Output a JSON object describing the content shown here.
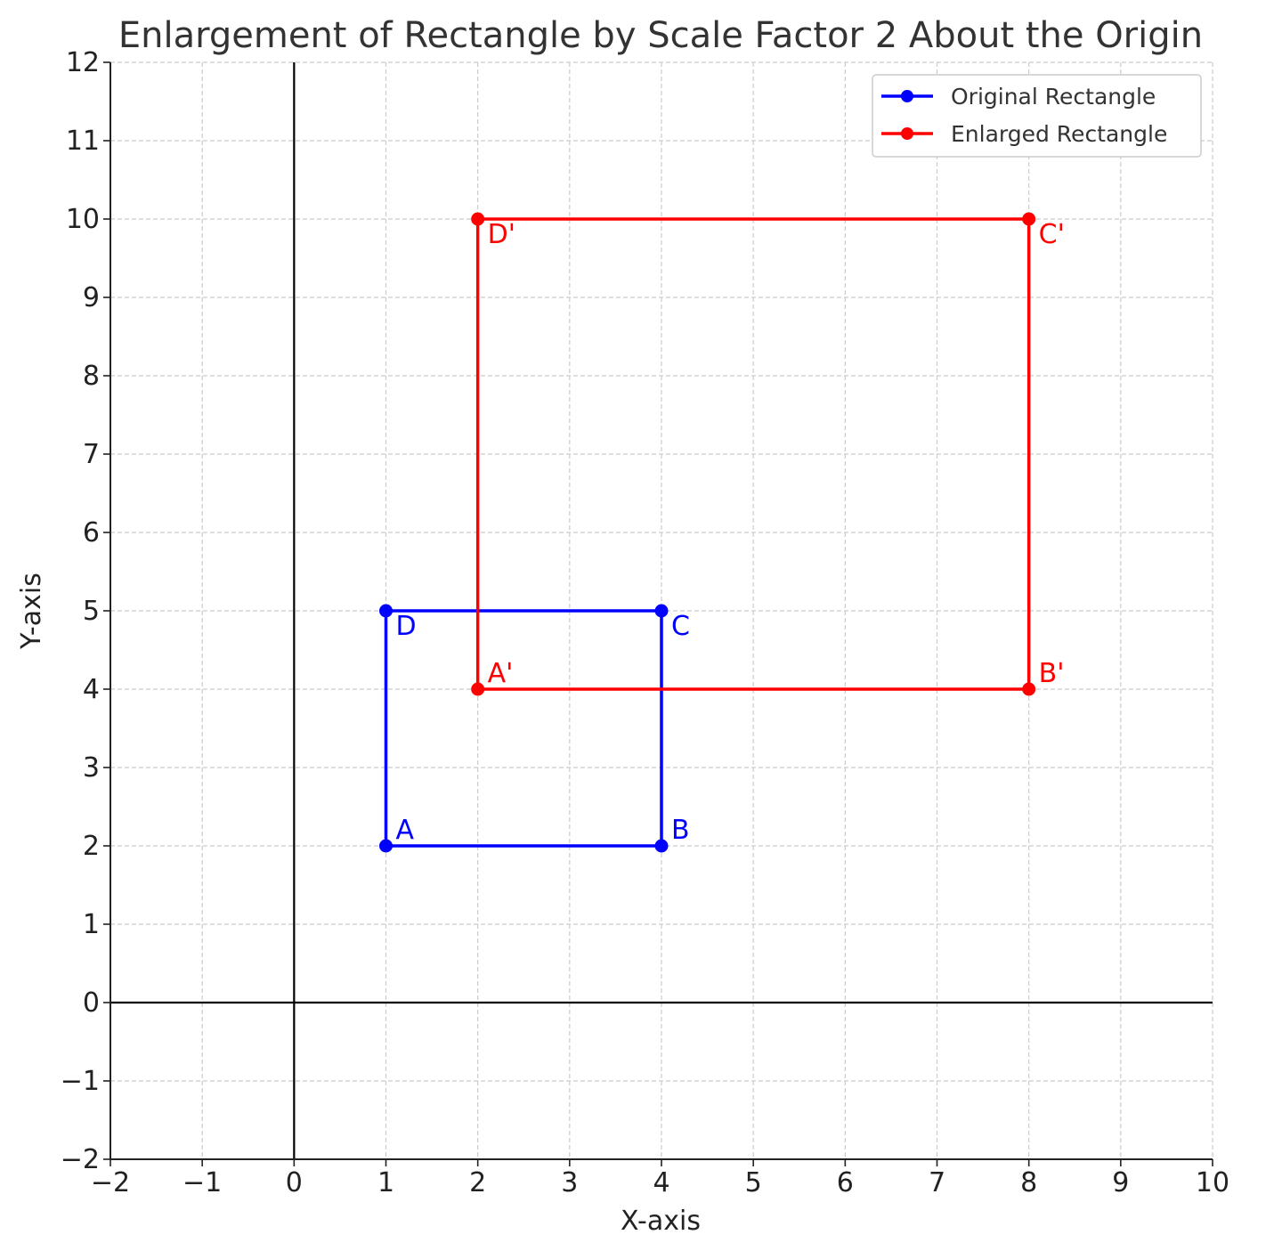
{
  "chart_data": {
    "type": "line",
    "title": "Enlargement of Rectangle by Scale Factor 2 About the Origin",
    "xlabel": "X-axis",
    "ylabel": "Y-axis",
    "xlim": [
      -2,
      10
    ],
    "ylim": [
      -2,
      12
    ],
    "x_ticks": [
      "−2",
      "−1",
      "0",
      "1",
      "2",
      "3",
      "4",
      "5",
      "6",
      "7",
      "8",
      "9",
      "10"
    ],
    "y_ticks": [
      "−2",
      "−1",
      "0",
      "1",
      "2",
      "3",
      "4",
      "5",
      "6",
      "7",
      "8",
      "9",
      "10",
      "11",
      "12"
    ],
    "grid": true,
    "legend_position": "top-right",
    "series": [
      {
        "name": "Original Rectangle",
        "color": "#0000ff",
        "points": [
          {
            "label": "A",
            "x": 1,
            "y": 2
          },
          {
            "label": "B",
            "x": 4,
            "y": 2
          },
          {
            "label": "C",
            "x": 4,
            "y": 5
          },
          {
            "label": "D",
            "x": 1,
            "y": 5
          }
        ]
      },
      {
        "name": "Enlarged Rectangle",
        "color": "#ff0000",
        "points": [
          {
            "label": "A'",
            "x": 2,
            "y": 4
          },
          {
            "label": "B'",
            "x": 8,
            "y": 4
          },
          {
            "label": "C'",
            "x": 8,
            "y": 10
          },
          {
            "label": "D'",
            "x": 2,
            "y": 10
          }
        ]
      }
    ]
  }
}
